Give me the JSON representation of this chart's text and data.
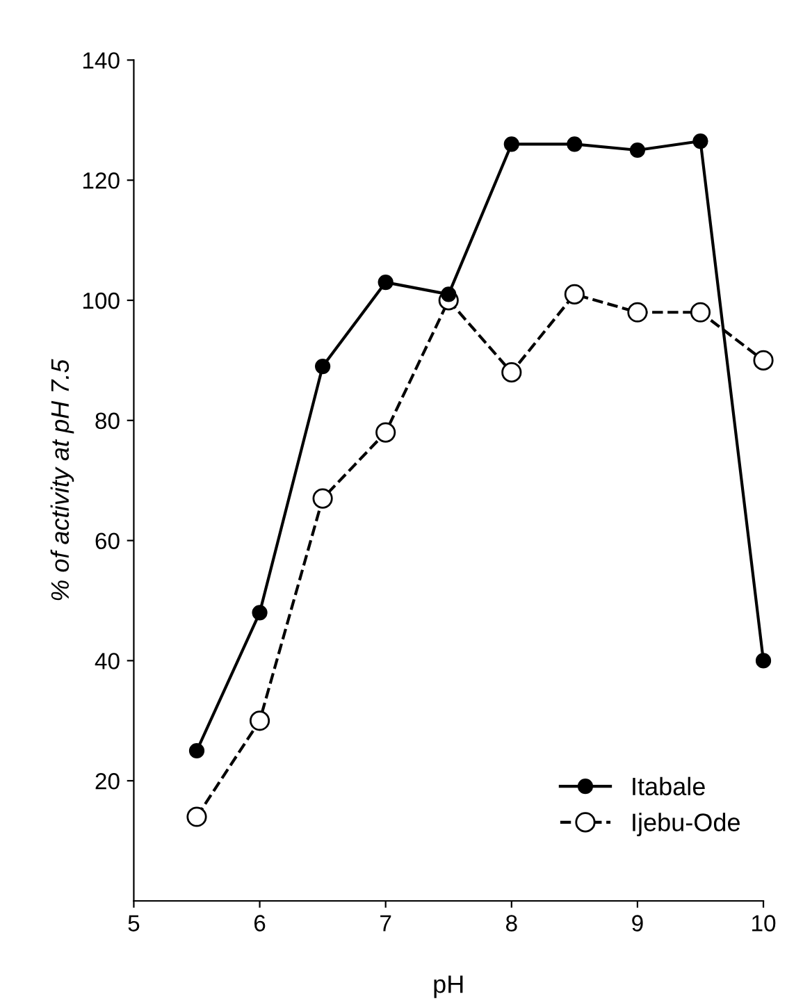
{
  "chart_data": {
    "type": "line",
    "xlabel": "pH",
    "ylabel": "% of activity at pH 7.5",
    "xlim": [
      5,
      10
    ],
    "xticks": [
      5,
      6,
      7,
      8,
      9,
      10
    ],
    "ylim": [
      0,
      140
    ],
    "yticks": [
      20,
      40,
      60,
      80,
      100,
      120,
      140
    ],
    "x": [
      5.5,
      6,
      6.5,
      7,
      7.5,
      8,
      8.5,
      9,
      9.5,
      10
    ],
    "series": [
      {
        "name": "Itabale",
        "color": "#000000",
        "marker": "circle",
        "line_style": "solid",
        "values": [
          25,
          48,
          89,
          103,
          101,
          126,
          126,
          125,
          126.5,
          40
        ]
      },
      {
        "name": "Ijebu-Ode",
        "color": "#000000",
        "marker": "circle",
        "line_style": "dashed",
        "values": [
          14,
          30,
          67,
          78,
          100,
          88,
          101,
          98,
          98,
          90
        ]
      }
    ],
    "grid": false,
    "legend": "bottom right"
  }
}
